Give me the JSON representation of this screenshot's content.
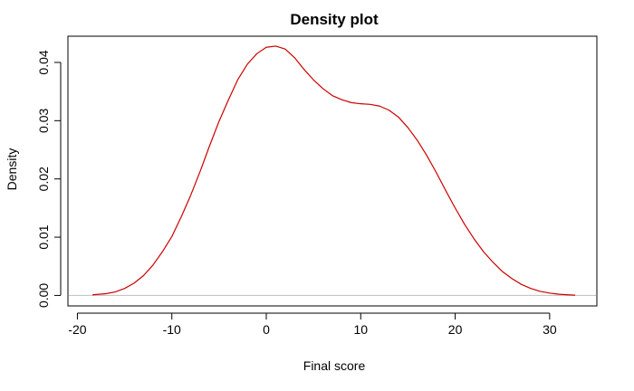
{
  "chart_data": {
    "type": "line",
    "title": "Density plot",
    "xlabel": "Final score",
    "ylabel": "Density",
    "xlim": [
      -21,
      35
    ],
    "ylim": [
      -0.0018,
      0.0445
    ],
    "xticks": [
      -20,
      -10,
      0,
      10,
      20,
      30
    ],
    "yticks": [
      0,
      0.01,
      0.02,
      0.03,
      0.04
    ],
    "xtick_labels": [
      "-20",
      "-10",
      "0",
      "10",
      "20",
      "30"
    ],
    "ytick_labels": [
      "0.00",
      "0.01",
      "0.02",
      "0.03",
      "0.04"
    ],
    "grid": false,
    "baseline": 0,
    "colors": {
      "line": "#cc0000",
      "baseline": "#bebebe",
      "frame": "#000000"
    },
    "series": [
      {
        "x": [
          -18.4,
          -17,
          -16,
          -15,
          -14,
          -13,
          -12,
          -11,
          -10,
          -9,
          -8,
          -7,
          -6,
          -5,
          -4,
          -3,
          -2,
          -1,
          0,
          1,
          2,
          3,
          4,
          5,
          6,
          7,
          8,
          9,
          10,
          11,
          12,
          13,
          14,
          15,
          16,
          17,
          18,
          19,
          20,
          21,
          22,
          23,
          24,
          25,
          26,
          27,
          28,
          29,
          30,
          31,
          32,
          32.7
        ],
        "y": [
          0.0001,
          0.0003,
          0.0006,
          0.0012,
          0.0021,
          0.0034,
          0.0052,
          0.0075,
          0.0101,
          0.0135,
          0.0172,
          0.0213,
          0.0257,
          0.0299,
          0.0336,
          0.0371,
          0.0397,
          0.0415,
          0.0426,
          0.0428,
          0.0423,
          0.0408,
          0.0388,
          0.037,
          0.0355,
          0.0343,
          0.0336,
          0.0331,
          0.0329,
          0.0328,
          0.0325,
          0.0318,
          0.0306,
          0.0288,
          0.0266,
          0.024,
          0.0211,
          0.018,
          0.015,
          0.0122,
          0.0097,
          0.0075,
          0.0057,
          0.0041,
          0.0029,
          0.0019,
          0.0012,
          0.0007,
          0.0004,
          0.0002,
          0.0001,
          5e-05
        ]
      }
    ]
  }
}
